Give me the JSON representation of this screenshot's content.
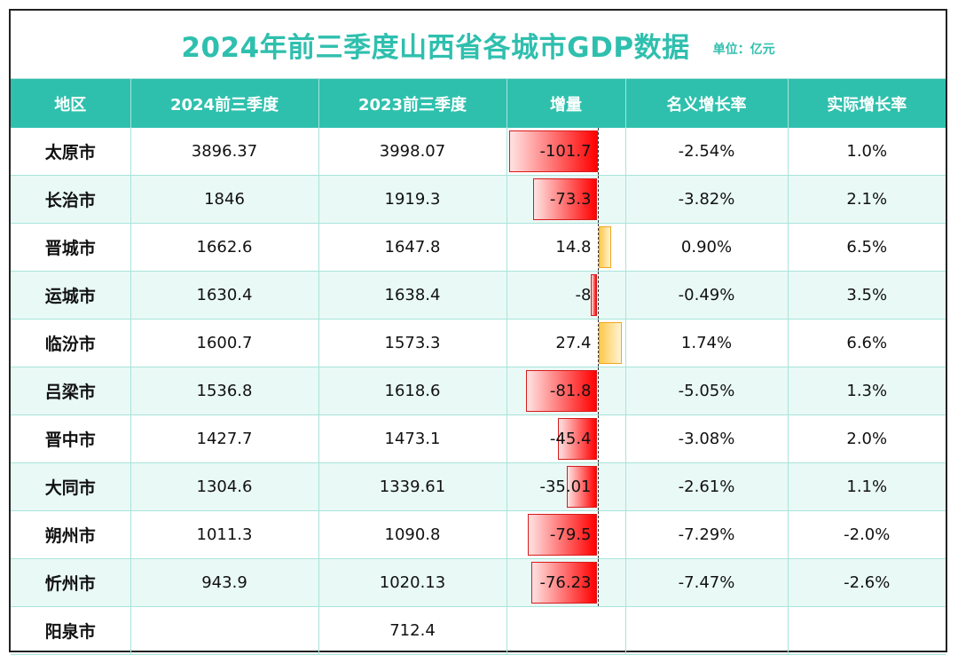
{
  "title": "2024年前三季度山西省各城市GDP数据",
  "unit": "单位：亿元",
  "headers": [
    "地区",
    "2024前三季度",
    "2023前三季度",
    "增量",
    "名义增长率",
    "实际增长率"
  ],
  "colors": {
    "accent": "#2ec0ad",
    "negative_bar": "#ff0000",
    "positive_bar": "#ffc94a"
  },
  "rows": [
    {
      "city": "太原市",
      "y2024": "3896.37",
      "y2023": "3998.07",
      "delta": "-101.7",
      "delta_value": -101.7,
      "nominal": "-2.54%",
      "real": "1.0%"
    },
    {
      "city": "长治市",
      "y2024": "1846",
      "y2023": "1919.3",
      "delta": "-73.3",
      "delta_value": -73.3,
      "nominal": "-3.82%",
      "real": "2.1%"
    },
    {
      "city": "晋城市",
      "y2024": "1662.6",
      "y2023": "1647.8",
      "delta": "14.8",
      "delta_value": 14.8,
      "nominal": "0.90%",
      "real": "6.5%"
    },
    {
      "city": "运城市",
      "y2024": "1630.4",
      "y2023": "1638.4",
      "delta": "-8",
      "delta_value": -8,
      "nominal": "-0.49%",
      "real": "3.5%"
    },
    {
      "city": "临汾市",
      "y2024": "1600.7",
      "y2023": "1573.3",
      "delta": "27.4",
      "delta_value": 27.4,
      "nominal": "1.74%",
      "real": "6.6%"
    },
    {
      "city": "吕梁市",
      "y2024": "1536.8",
      "y2023": "1618.6",
      "delta": "-81.8",
      "delta_value": -81.8,
      "nominal": "-5.05%",
      "real": "1.3%"
    },
    {
      "city": "晋中市",
      "y2024": "1427.7",
      "y2023": "1473.1",
      "delta": "-45.4",
      "delta_value": -45.4,
      "nominal": "-3.08%",
      "real": "2.0%"
    },
    {
      "city": "大同市",
      "y2024": "1304.6",
      "y2023": "1339.61",
      "delta": "-35.01",
      "delta_value": -35.01,
      "nominal": "-2.61%",
      "real": "1.1%"
    },
    {
      "city": "朔州市",
      "y2024": "1011.3",
      "y2023": "1090.8",
      "delta": "-79.5",
      "delta_value": -79.5,
      "nominal": "-7.29%",
      "real": "-2.0%"
    },
    {
      "city": "忻州市",
      "y2024": "943.9",
      "y2023": "1020.13",
      "delta": "-76.23",
      "delta_value": -76.23,
      "nominal": "-7.47%",
      "real": "-2.6%"
    },
    {
      "city": "阳泉市",
      "y2024": "",
      "y2023": "712.4",
      "delta": "",
      "delta_value": null,
      "nominal": "",
      "real": ""
    }
  ]
}
